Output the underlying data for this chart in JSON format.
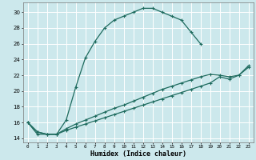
{
  "xlabel": "Humidex (Indice chaleur)",
  "bg_color": "#cce8ec",
  "line_color": "#1e6b5e",
  "grid_color": "#ffffff",
  "xlim": [
    -0.5,
    23.5
  ],
  "ylim": [
    13.5,
    31.2
  ],
  "xticks": [
    0,
    1,
    2,
    3,
    4,
    5,
    6,
    7,
    8,
    9,
    10,
    11,
    12,
    13,
    14,
    15,
    16,
    17,
    18,
    19,
    20,
    21,
    22,
    23
  ],
  "yticks": [
    14,
    16,
    18,
    20,
    22,
    24,
    26,
    28,
    30
  ],
  "line1_x": [
    0,
    1,
    2,
    3,
    4,
    5,
    6,
    7,
    8,
    9,
    10,
    11,
    12,
    13,
    14,
    15,
    16,
    17,
    18
  ],
  "line1_y": [
    16,
    14.5,
    14.5,
    14.5,
    16.3,
    20.5,
    24.2,
    26.3,
    28.0,
    29.0,
    29.5,
    30.0,
    30.5,
    30.5,
    30.0,
    29.5,
    29.0,
    27.5,
    26.0
  ],
  "line2_x": [
    0,
    1,
    2,
    3,
    4,
    5,
    6,
    7,
    8,
    9,
    10,
    11,
    12,
    13,
    14,
    15,
    16,
    17,
    18,
    19,
    20,
    21,
    22,
    23
  ],
  "line2_y": [
    16,
    14.8,
    14.5,
    14.5,
    15.2,
    15.8,
    16.3,
    16.8,
    17.3,
    17.8,
    18.2,
    18.7,
    19.2,
    19.7,
    20.2,
    20.6,
    21.0,
    21.4,
    21.8,
    22.1,
    22.0,
    21.8,
    22.0,
    23.0
  ],
  "line3_x": [
    0,
    1,
    2,
    3,
    4,
    5,
    6,
    7,
    8,
    9,
    10,
    11,
    12,
    13,
    14,
    15,
    16,
    17,
    18,
    19,
    20,
    21,
    22,
    23
  ],
  "line3_y": [
    16,
    14.8,
    14.5,
    14.5,
    15.0,
    15.4,
    15.8,
    16.2,
    16.6,
    17.0,
    17.4,
    17.8,
    18.2,
    18.6,
    19.0,
    19.4,
    19.8,
    20.2,
    20.6,
    21.0,
    21.8,
    21.5,
    22.0,
    23.2
  ],
  "marker_size": 3,
  "linewidth": 0.9,
  "xlabel_fontsize": 6.0,
  "xtick_fontsize": 4.2,
  "ytick_fontsize": 5.0
}
